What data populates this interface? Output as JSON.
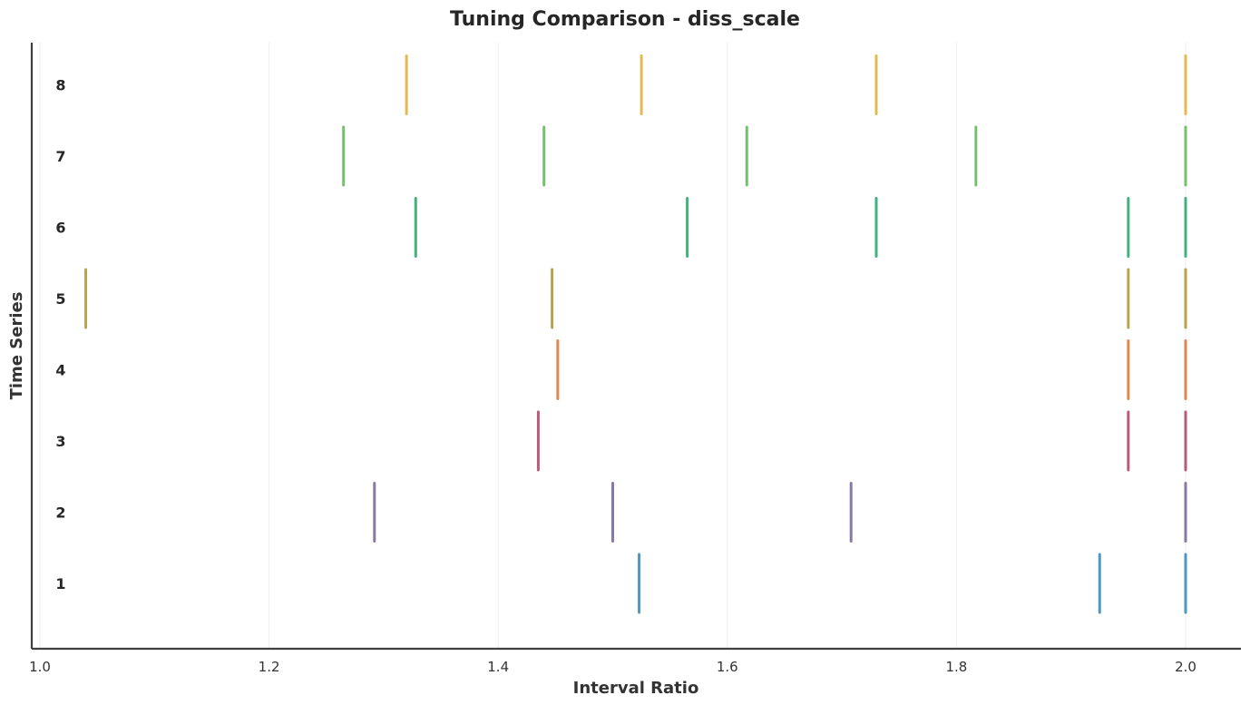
{
  "chart_data": {
    "type": "scatter",
    "mark": "vertical-tick",
    "title": "Tuning Comparison - diss_scale",
    "xlabel": "Interval Ratio",
    "ylabel": "Time Series",
    "xlim": [
      0.99,
      2.05
    ],
    "xticks": [
      1.0,
      1.2,
      1.4,
      1.6,
      1.8,
      2.0
    ],
    "xtick_labels": [
      "1.0",
      "1.2",
      "1.4",
      "1.6",
      "1.8",
      "2.0"
    ],
    "grid": "x-only, faint",
    "series": [
      {
        "name": "1",
        "color": "#3a8fbe",
        "x": [
          1.523,
          1.925,
          2.0
        ]
      },
      {
        "name": "2",
        "color": "#7e6b9c",
        "x": [
          1.292,
          1.5,
          1.708,
          2.0
        ]
      },
      {
        "name": "3",
        "color": "#b34a6c",
        "x": [
          1.435,
          1.95,
          2.0
        ]
      },
      {
        "name": "4",
        "color": "#e07b39",
        "x": [
          1.452,
          1.95,
          2.0
        ]
      },
      {
        "name": "5",
        "color": "#b39a3a",
        "x": [
          1.04,
          1.447,
          1.95,
          2.0
        ]
      },
      {
        "name": "6",
        "color": "#2fa872",
        "x": [
          1.328,
          1.565,
          1.73,
          1.95,
          2.0
        ]
      },
      {
        "name": "7",
        "color": "#66bb5e",
        "x": [
          1.265,
          1.44,
          1.617,
          1.817,
          2.0
        ]
      },
      {
        "name": "8",
        "color": "#e3b23c",
        "x": [
          1.32,
          1.525,
          1.73,
          2.0
        ]
      }
    ]
  }
}
